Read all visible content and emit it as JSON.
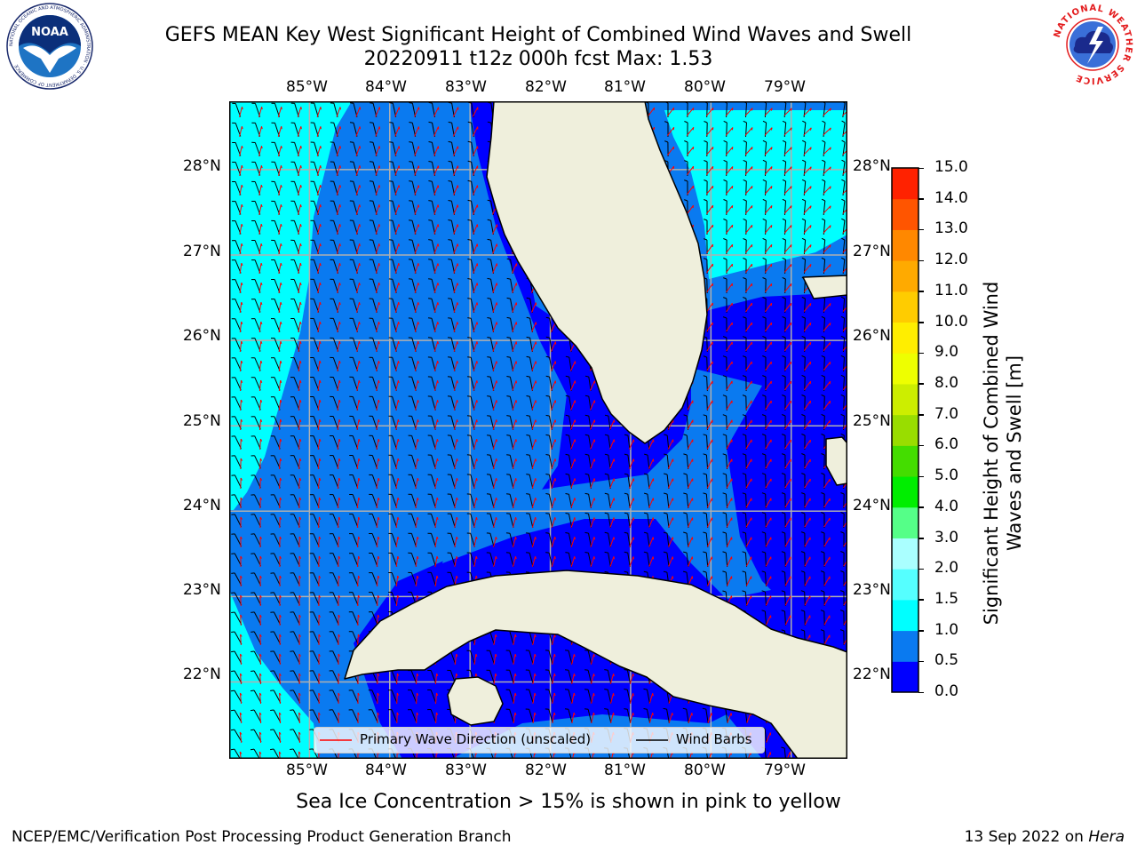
{
  "header": {
    "title_line1": "GEFS MEAN Key West Significant Height of Combined Wind Waves and Swell",
    "title_line2": "20220911 t12z 000h fcst   Max: 1.53"
  },
  "logos": {
    "left": {
      "name": "noaa-logo",
      "text": "NOAA",
      "ring_text": "NATIONAL OCEANIC AND ATMOSPHERIC ADMINISTRATION · U.S. DEPARTMENT OF COMMERCE"
    },
    "right": {
      "name": "nws-logo",
      "ring_text": "NATIONAL WEATHER SERVICE"
    }
  },
  "map": {
    "lon_labels": [
      "85°W",
      "84°W",
      "83°W",
      "82°W",
      "81°W",
      "80°W",
      "79°W"
    ],
    "lat_labels": [
      "28°N",
      "27°N",
      "26°N",
      "25°N",
      "24°N",
      "23°N",
      "22°N"
    ],
    "lon_range": [
      -86.0,
      -78.3
    ],
    "lat_range": [
      21.1,
      28.8
    ],
    "colors": {
      "land": "#efefdc",
      "grid": "#b0b0b0",
      "wave_arrow": "#ff0000",
      "wind_barb": "#000000"
    }
  },
  "legend": {
    "wave_label": "Primary Wave Direction (unscaled)",
    "wind_label": "Wind Barbs"
  },
  "colorbar": {
    "label": "Significant Height of Combined Wind Waves and Swell [m]",
    "ticks": [
      "0.0",
      "0.5",
      "1.0",
      "1.5",
      "2.0",
      "3.0",
      "4.0",
      "5.0",
      "6.0",
      "7.0",
      "8.0",
      "9.0",
      "10.0",
      "11.0",
      "12.0",
      "13.0",
      "14.0",
      "15.0"
    ],
    "colors": [
      "#0000ff",
      "#0a7af0",
      "#00ffff",
      "#55ffff",
      "#aaffff",
      "#55ff88",
      "#00ee00",
      "#44dd00",
      "#99dd00",
      "#ccee00",
      "#eeff00",
      "#ffee00",
      "#ffcc00",
      "#ffaa00",
      "#ff8800",
      "#ff5500",
      "#ff2200"
    ]
  },
  "note": "Sea Ice Concentration > 15% is shown in pink to yellow",
  "footer": {
    "left": "NCEP/EMC/Verification Post Processing Product Generation Branch",
    "right_prefix": "13 Sep 2022 on ",
    "right_host": "Hera"
  }
}
